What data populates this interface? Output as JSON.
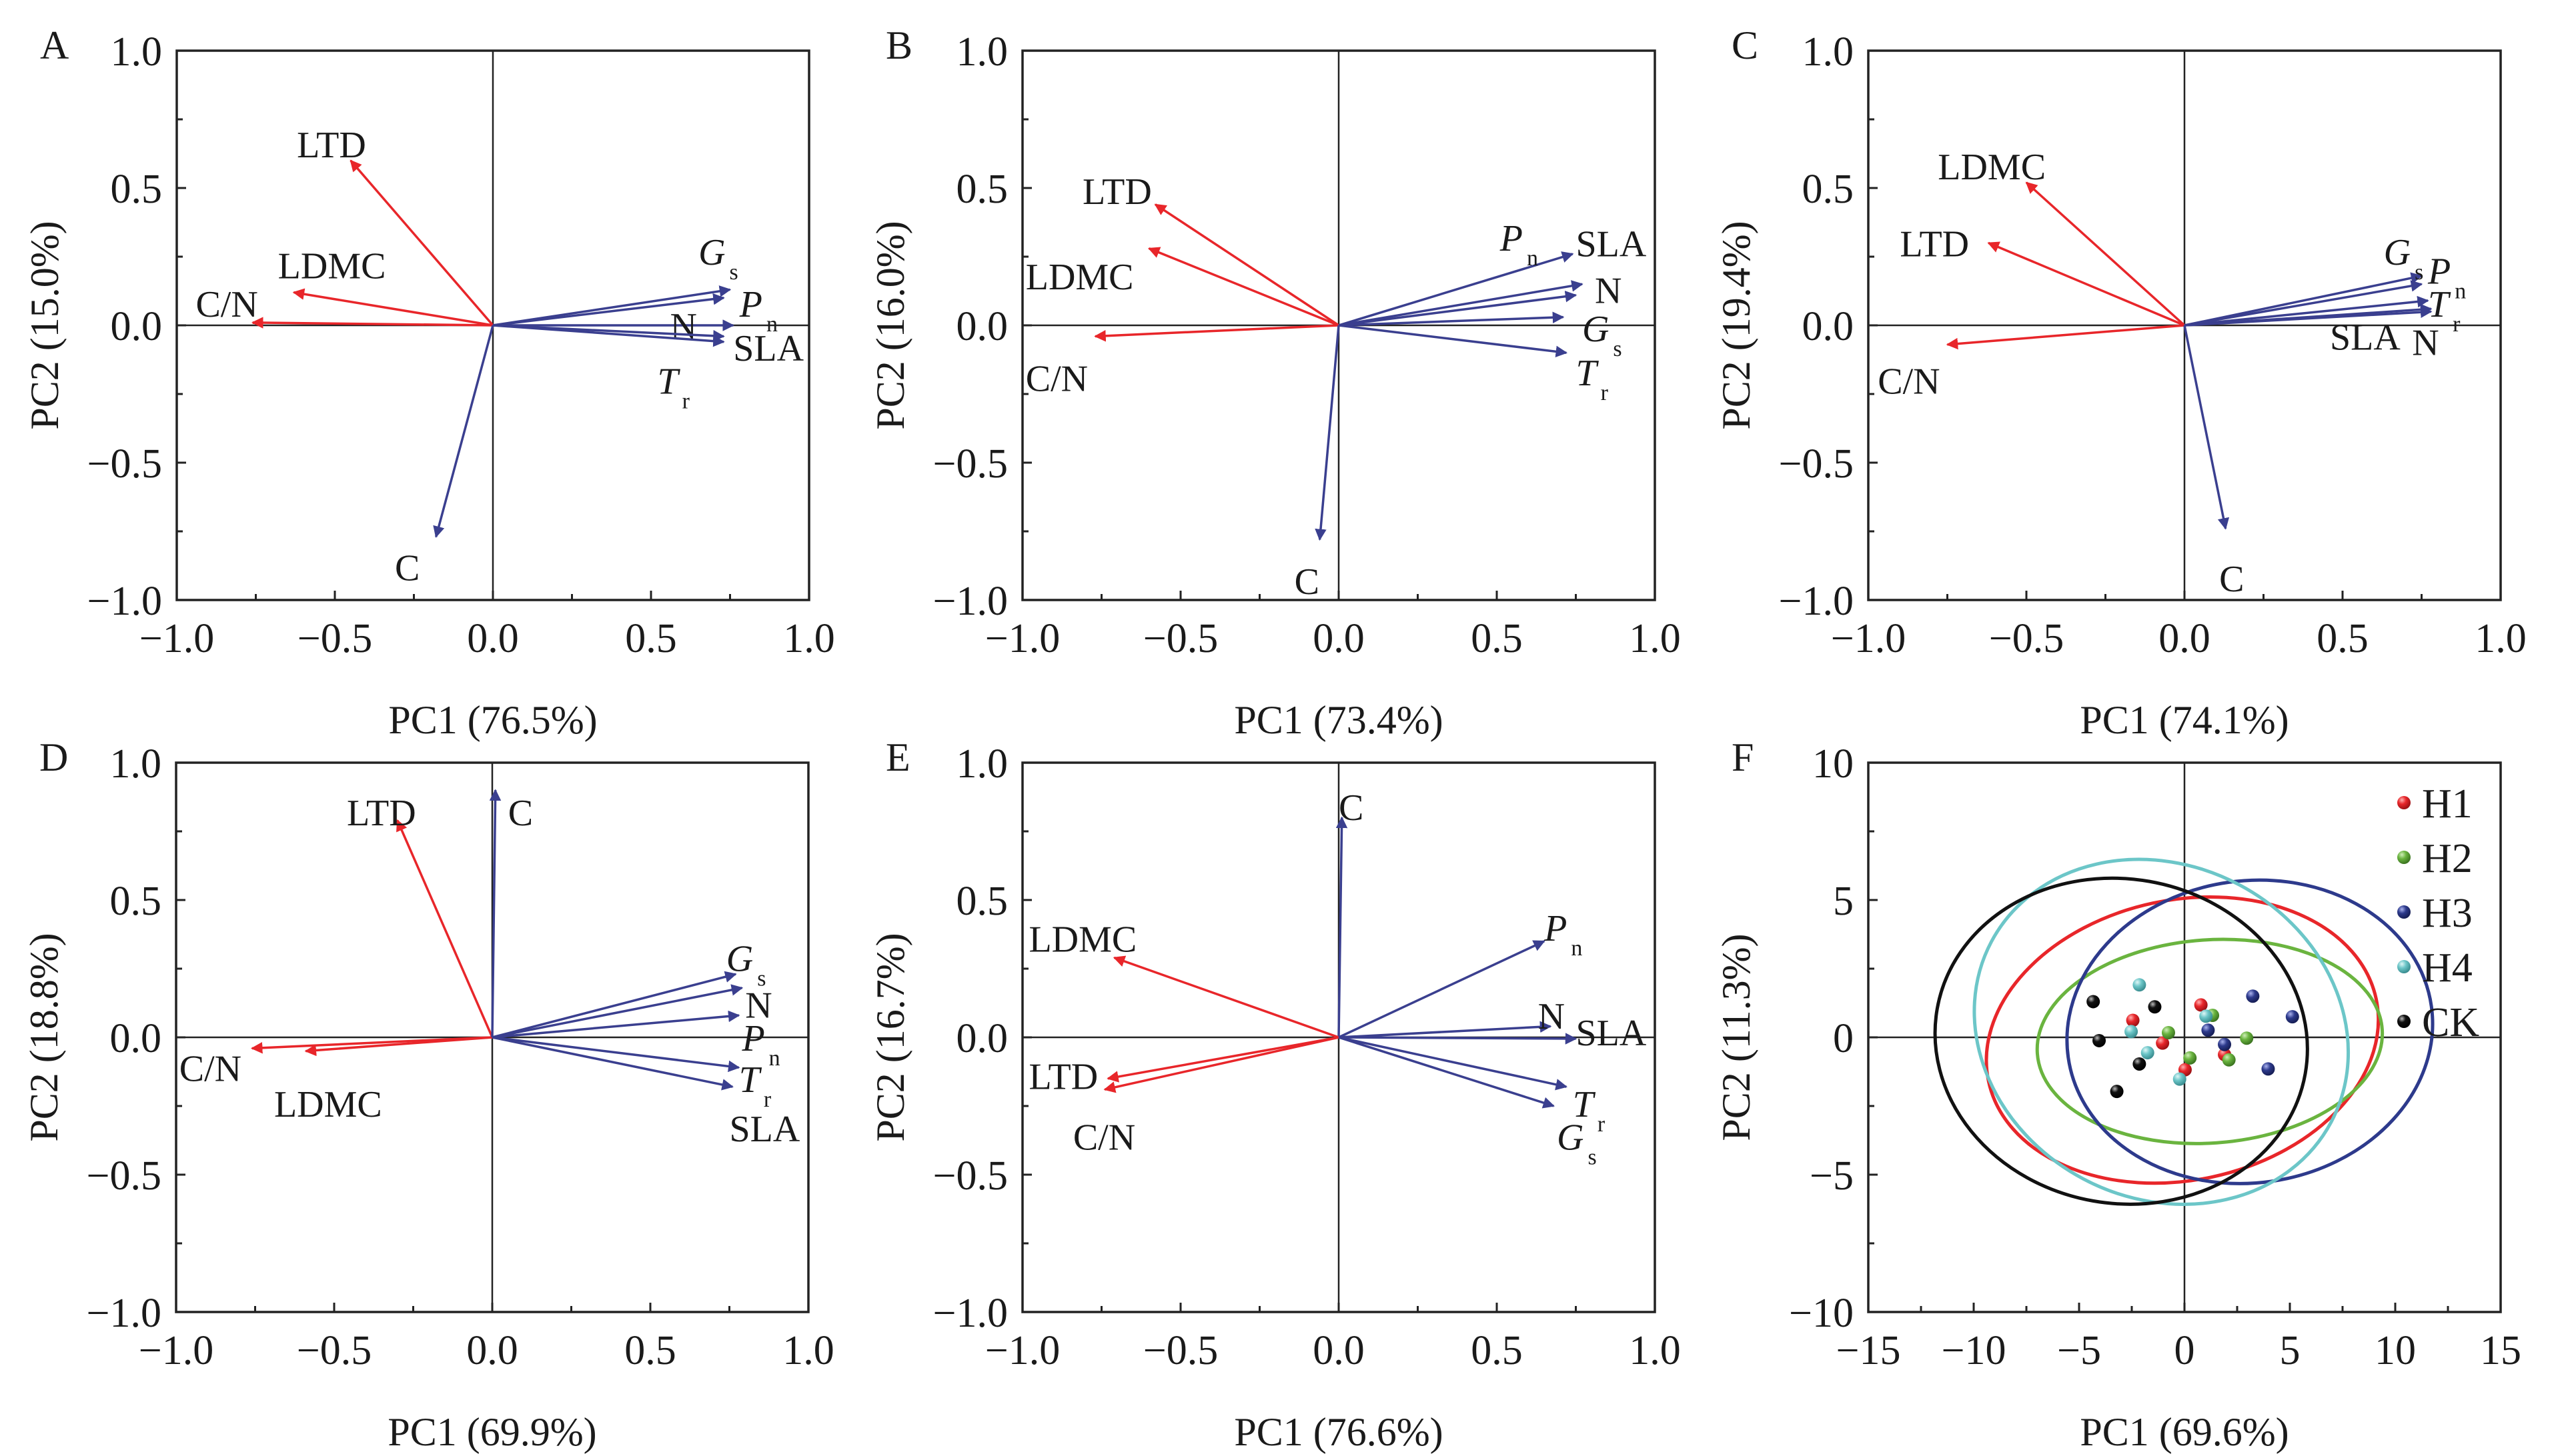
{
  "figure": {
    "colors": {
      "trait_negative": "#e8262a",
      "trait_positive": "#3a3f8f",
      "H1": "#e8262a",
      "H2": "#6ab43f",
      "H3": "#2d3a8c",
      "H4": "#6cc6c8",
      "CK": "#111111"
    }
  },
  "chart_data": [
    {
      "panel": "A",
      "type": "biplot",
      "xlabel": "PC1 (76.5%)",
      "ylabel": "PC2 (15.0%)",
      "xlim": [
        -1.0,
        1.0
      ],
      "ylim": [
        -1.0,
        1.0
      ],
      "xticks": [
        "−1.0",
        "−0.5",
        "0.0",
        "0.5",
        "1.0"
      ],
      "yticks": [
        "−1.0",
        "−0.5",
        "0.0",
        "0.5",
        "1.0"
      ],
      "loadings": [
        {
          "label": "LTD",
          "sub": "",
          "italic": false,
          "x": -0.45,
          "y": 0.6,
          "group": "negative",
          "lx": -0.62,
          "ly": 0.66
        },
        {
          "label": "LDMC",
          "sub": "",
          "italic": false,
          "x": -0.63,
          "y": 0.12,
          "group": "negative",
          "lx": -0.68,
          "ly": 0.22
        },
        {
          "label": "C/N",
          "sub": "",
          "italic": false,
          "x": -0.76,
          "y": 0.01,
          "group": "negative",
          "lx": -0.94,
          "ly": 0.08
        },
        {
          "label": "G",
          "sub": "s",
          "italic": true,
          "x": 0.75,
          "y": 0.13,
          "group": "positive",
          "lx": 0.65,
          "ly": 0.27
        },
        {
          "label": "P",
          "sub": "n",
          "italic": true,
          "x": 0.73,
          "y": 0.1,
          "group": "positive",
          "lx": 0.78,
          "ly": 0.08
        },
        {
          "label": "N",
          "sub": "",
          "italic": false,
          "x": 0.76,
          "y": 0.0,
          "group": "positive",
          "lx": 0.56,
          "ly": 0.0
        },
        {
          "label": "SLA",
          "sub": "",
          "italic": false,
          "x": 0.73,
          "y": -0.06,
          "group": "positive",
          "lx": 0.76,
          "ly": -0.08
        },
        {
          "label": "T",
          "sub": "r",
          "italic": true,
          "x": 0.73,
          "y": -0.04,
          "group": "positive",
          "lx": 0.52,
          "ly": -0.2
        },
        {
          "label": "C",
          "sub": "",
          "italic": false,
          "x": -0.18,
          "y": -0.77,
          "group": "positive",
          "lx": -0.31,
          "ly": -0.88
        }
      ]
    },
    {
      "panel": "B",
      "type": "biplot",
      "xlabel": "PC1 (73.4%)",
      "ylabel": "PC2 (16.0%)",
      "xlim": [
        -1.0,
        1.0
      ],
      "ylim": [
        -1.0,
        1.0
      ],
      "xticks": [
        "−1.0",
        "−0.5",
        "0.0",
        "0.5",
        "1.0"
      ],
      "yticks": [
        "−1.0",
        "−0.5",
        "0.0",
        "0.5",
        "1.0"
      ],
      "loadings": [
        {
          "label": "LTD",
          "sub": "",
          "italic": false,
          "x": -0.58,
          "y": 0.44,
          "group": "negative",
          "lx": -0.81,
          "ly": 0.49
        },
        {
          "label": "LDMC",
          "sub": "",
          "italic": false,
          "x": -0.6,
          "y": 0.28,
          "group": "negative",
          "lx": -0.99,
          "ly": 0.18
        },
        {
          "label": "C/N",
          "sub": "",
          "italic": false,
          "x": -0.77,
          "y": -0.04,
          "group": "negative",
          "lx": -0.99,
          "ly": -0.19
        },
        {
          "label": "P",
          "sub": "n",
          "italic": true,
          "x": 0.74,
          "y": 0.26,
          "group": "positive",
          "lx": 0.51,
          "ly": 0.32
        },
        {
          "label": "SLA",
          "sub": "",
          "italic": false,
          "x": 0.77,
          "y": 0.15,
          "group": "positive",
          "lx": 0.75,
          "ly": 0.3
        },
        {
          "label": "N",
          "sub": "",
          "italic": false,
          "x": 0.75,
          "y": 0.11,
          "group": "positive",
          "lx": 0.81,
          "ly": 0.13
        },
        {
          "label": "G",
          "sub": "s",
          "italic": true,
          "x": 0.71,
          "y": 0.03,
          "group": "positive",
          "lx": 0.77,
          "ly": -0.01
        },
        {
          "label": "T",
          "sub": "r",
          "italic": true,
          "x": 0.72,
          "y": -0.1,
          "group": "positive",
          "lx": 0.75,
          "ly": -0.17
        },
        {
          "label": "C",
          "sub": "",
          "italic": false,
          "x": -0.06,
          "y": -0.78,
          "group": "positive",
          "lx": -0.14,
          "ly": -0.93
        }
      ]
    },
    {
      "panel": "C",
      "type": "biplot",
      "xlabel": "PC1 (74.1%)",
      "ylabel": "PC2 (19.4%)",
      "xlim": [
        -1.0,
        1.0
      ],
      "ylim": [
        -1.0,
        1.0
      ],
      "xticks": [
        "−1.0",
        "−0.5",
        "0.0",
        "0.5",
        "1.0"
      ],
      "yticks": [
        "−1.0",
        "−0.5",
        "0.0",
        "0.5",
        "1.0"
      ],
      "loadings": [
        {
          "label": "LDMC",
          "sub": "",
          "italic": false,
          "x": -0.5,
          "y": 0.52,
          "group": "negative",
          "lx": -0.78,
          "ly": 0.58
        },
        {
          "label": "LTD",
          "sub": "",
          "italic": false,
          "x": -0.62,
          "y": 0.3,
          "group": "negative",
          "lx": -0.9,
          "ly": 0.3
        },
        {
          "label": "C/N",
          "sub": "",
          "italic": false,
          "x": -0.75,
          "y": -0.07,
          "group": "negative",
          "lx": -0.97,
          "ly": -0.2
        },
        {
          "label": "G",
          "sub": "s",
          "italic": true,
          "x": 0.75,
          "y": 0.18,
          "group": "positive",
          "lx": 0.63,
          "ly": 0.27
        },
        {
          "label": "P",
          "sub": "n",
          "italic": true,
          "x": 0.75,
          "y": 0.15,
          "group": "positive",
          "lx": 0.77,
          "ly": 0.2
        },
        {
          "label": "T",
          "sub": "r",
          "italic": true,
          "x": 0.77,
          "y": 0.09,
          "group": "positive",
          "lx": 0.77,
          "ly": 0.08
        },
        {
          "label": "SLA",
          "sub": "",
          "italic": false,
          "x": 0.78,
          "y": 0.06,
          "group": "positive",
          "lx": 0.46,
          "ly": -0.04
        },
        {
          "label": "N",
          "sub": "",
          "italic": false,
          "x": 0.78,
          "y": 0.05,
          "group": "positive",
          "lx": 0.72,
          "ly": -0.06
        },
        {
          "label": "C",
          "sub": "",
          "italic": false,
          "x": 0.13,
          "y": -0.74,
          "group": "positive",
          "lx": 0.11,
          "ly": -0.92
        }
      ]
    },
    {
      "panel": "D",
      "type": "biplot",
      "xlabel": "PC1 (69.9%)",
      "ylabel": "PC2 (18.8%)",
      "xlim": [
        -1.0,
        1.0
      ],
      "ylim": [
        -1.0,
        1.0
      ],
      "xticks": [
        "−1.0",
        "−0.5",
        "0.0",
        "0.5",
        "1.0"
      ],
      "yticks": [
        "−1.0",
        "−0.5",
        "0.0",
        "0.5",
        "1.0"
      ],
      "loadings": [
        {
          "label": "LTD",
          "sub": "",
          "italic": false,
          "x": -0.3,
          "y": 0.79,
          "group": "negative",
          "lx": -0.46,
          "ly": 0.82
        },
        {
          "label": "C/N",
          "sub": "",
          "italic": false,
          "x": -0.76,
          "y": -0.04,
          "group": "negative",
          "lx": -0.99,
          "ly": -0.11
        },
        {
          "label": "LDMC",
          "sub": "",
          "italic": false,
          "x": -0.59,
          "y": -0.05,
          "group": "negative",
          "lx": -0.69,
          "ly": -0.24
        },
        {
          "label": "C",
          "sub": "",
          "italic": false,
          "x": 0.01,
          "y": 0.9,
          "group": "positive",
          "lx": 0.05,
          "ly": 0.82
        },
        {
          "label": "G",
          "sub": "s",
          "italic": true,
          "x": 0.77,
          "y": 0.23,
          "group": "positive",
          "lx": 0.74,
          "ly": 0.29
        },
        {
          "label": "N",
          "sub": "",
          "italic": false,
          "x": 0.79,
          "y": 0.18,
          "group": "positive",
          "lx": 0.8,
          "ly": 0.12
        },
        {
          "label": "P",
          "sub": "n",
          "italic": true,
          "x": 0.78,
          "y": 0.08,
          "group": "positive",
          "lx": 0.79,
          "ly": 0.0
        },
        {
          "label": "T",
          "sub": "r",
          "italic": true,
          "x": 0.78,
          "y": -0.11,
          "group": "positive",
          "lx": 0.78,
          "ly": -0.15
        },
        {
          "label": "SLA",
          "sub": "",
          "italic": false,
          "x": 0.76,
          "y": -0.18,
          "group": "positive",
          "lx": 0.75,
          "ly": -0.33
        }
      ]
    },
    {
      "panel": "E",
      "type": "biplot",
      "xlabel": "PC1 (76.6%)",
      "ylabel": "PC2 (16.7%)",
      "xlim": [
        -1.0,
        1.0
      ],
      "ylim": [
        -1.0,
        1.0
      ],
      "xticks": [
        "−1.0",
        "−0.5",
        "0.0",
        "0.5",
        "1.0"
      ],
      "yticks": [
        "−1.0",
        "−0.5",
        "0.0",
        "0.5",
        "1.0"
      ],
      "loadings": [
        {
          "label": "C",
          "sub": "",
          "italic": false,
          "x": 0.01,
          "y": 0.8,
          "group": "positive",
          "lx": 0.0,
          "ly": 0.84
        },
        {
          "label": "LDMC",
          "sub": "",
          "italic": false,
          "x": -0.71,
          "y": 0.29,
          "group": "negative",
          "lx": -0.98,
          "ly": 0.36
        },
        {
          "label": "LTD",
          "sub": "",
          "italic": false,
          "x": -0.73,
          "y": -0.15,
          "group": "negative",
          "lx": -0.98,
          "ly": -0.14
        },
        {
          "label": "C/N",
          "sub": "",
          "italic": false,
          "x": -0.74,
          "y": -0.19,
          "group": "negative",
          "lx": -0.84,
          "ly": -0.36
        },
        {
          "label": "P",
          "sub": "n",
          "italic": true,
          "x": 0.65,
          "y": 0.35,
          "group": "positive",
          "lx": 0.65,
          "ly": 0.4
        },
        {
          "label": "N",
          "sub": "",
          "italic": false,
          "x": 0.67,
          "y": 0.04,
          "group": "positive",
          "lx": 0.63,
          "ly": 0.08
        },
        {
          "label": "SLA",
          "sub": "",
          "italic": false,
          "x": 0.75,
          "y": -0.005,
          "group": "positive",
          "lx": 0.75,
          "ly": 0.02
        },
        {
          "label": "T",
          "sub": "r",
          "italic": true,
          "x": 0.72,
          "y": -0.18,
          "group": "positive",
          "lx": 0.74,
          "ly": -0.24
        },
        {
          "label": "G",
          "sub": "s",
          "italic": true,
          "x": 0.68,
          "y": -0.25,
          "group": "positive",
          "lx": 0.69,
          "ly": -0.36
        }
      ]
    },
    {
      "panel": "F",
      "type": "scatter",
      "xlabel": "PC1 (69.6%)",
      "ylabel": "PC2 (11.3%)",
      "xlim": [
        -15,
        15
      ],
      "ylim": [
        -10,
        10
      ],
      "xticks": [
        "−15",
        "−10",
        "−5",
        "0",
        "5",
        "10",
        "15"
      ],
      "yticks": [
        "−10",
        "−5",
        "0",
        "5",
        "10"
      ],
      "legend_position": "top-right",
      "series": [
        {
          "name": "H1",
          "points": [
            [
              0.78,
              1.18
            ],
            [
              -2.45,
              0.62
            ],
            [
              -1.04,
              -0.21
            ],
            [
              1.9,
              -0.63
            ],
            [
              0.03,
              -1.18
            ]
          ],
          "ellipse": {
            "cx": -0.1,
            "cy": -0.1,
            "rx": 9.4,
            "ry": 5.1,
            "angle": -12
          }
        },
        {
          "name": "H2",
          "points": [
            [
              1.33,
              0.8
            ],
            [
              -0.76,
              0.17
            ],
            [
              2.95,
              -0.03
            ],
            [
              0.26,
              -0.75
            ],
            [
              2.11,
              -0.82
            ]
          ],
          "ellipse": {
            "cx": 1.2,
            "cy": -0.15,
            "rx": 8.2,
            "ry": 3.7,
            "angle": -4
          }
        },
        {
          "name": "H3",
          "points": [
            [
              3.24,
              1.5
            ],
            [
              5.12,
              0.75
            ],
            [
              1.12,
              0.26
            ],
            [
              1.9,
              -0.26
            ],
            [
              3.97,
              -1.15
            ]
          ],
          "ellipse": {
            "cx": 3.1,
            "cy": 0.2,
            "rx": 8.7,
            "ry": 5.5,
            "angle": -8
          }
        },
        {
          "name": "H4",
          "points": [
            [
              -2.14,
              1.91
            ],
            [
              1.02,
              0.77
            ],
            [
              -2.53,
              0.21
            ],
            [
              -1.75,
              -0.56
            ],
            [
              -0.23,
              -1.52
            ]
          ],
          "ellipse": {
            "cx": -1.1,
            "cy": 0.2,
            "rx": 7.9,
            "ry": 7.0,
            "angle": -62
          }
        },
        {
          "name": "CK",
          "points": [
            [
              -4.33,
              1.3
            ],
            [
              -1.41,
              1.11
            ],
            [
              -4.05,
              -0.12
            ],
            [
              -2.14,
              -0.97
            ],
            [
              -3.21,
              -1.97
            ]
          ],
          "ellipse": {
            "cx": -3.0,
            "cy": -0.14,
            "rx": 7.7,
            "ry": 6.8,
            "angle": -80
          }
        }
      ]
    }
  ]
}
